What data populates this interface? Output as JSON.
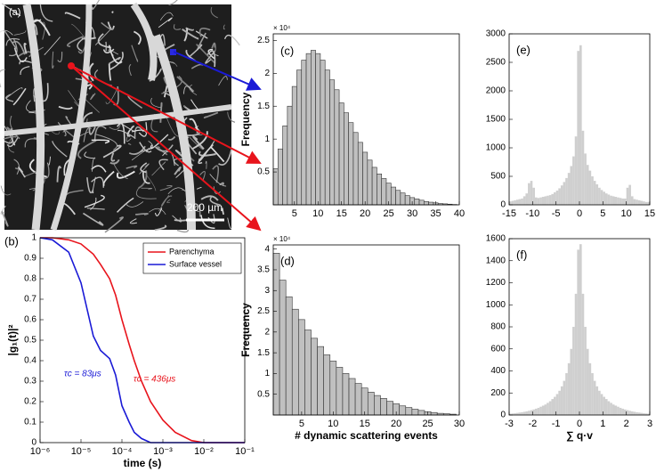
{
  "image": {
    "label": "(a)",
    "scale_bar": "200 µm"
  },
  "chart_data": [
    {
      "type": "line",
      "label": "(b)",
      "x_scale": "log",
      "xlabel": "time (s)",
      "ylabel": "|g₁(t)|²",
      "xlim": [
        1e-06,
        0.1
      ],
      "ylim": [
        0,
        1
      ],
      "xticks": [
        {
          "value": 1e-06,
          "label": "10⁻⁶"
        },
        {
          "value": 1e-05,
          "label": "10⁻⁵"
        },
        {
          "value": 0.0001,
          "label": "10⁻⁴"
        },
        {
          "value": 0.001,
          "label": "10⁻³"
        },
        {
          "value": 0.01,
          "label": "10⁻²"
        },
        {
          "value": 0.1,
          "label": "10⁻¹"
        }
      ],
      "yticks": [
        0,
        0.1,
        0.2,
        0.3,
        0.4,
        0.5,
        0.6,
        0.7,
        0.8,
        0.9,
        1
      ],
      "x": [
        1e-06,
        2e-06,
        5e-06,
        1e-05,
        2e-05,
        3e-05,
        5e-05,
        7e-05,
        0.0001,
        0.00015,
        0.0002,
        0.0003,
        0.0005,
        0.001,
        0.002,
        0.005,
        0.01,
        0.1
      ],
      "series": [
        {
          "name": "Parenchyma",
          "color": "#e8141c",
          "values": [
            1,
            1,
            0.99,
            0.97,
            0.92,
            0.87,
            0.8,
            0.72,
            0.6,
            0.48,
            0.4,
            0.3,
            0.2,
            0.11,
            0.05,
            0.01,
            0,
            0
          ]
        },
        {
          "name": "Surface vessel",
          "color": "#1a1ad6",
          "values": [
            1,
            0.99,
            0.93,
            0.78,
            0.52,
            0.45,
            0.41,
            0.33,
            0.18,
            0.1,
            0.05,
            0.02,
            0,
            0,
            0,
            0,
            0,
            0
          ]
        }
      ],
      "legend": "upper right",
      "annotations": [
        {
          "text": "τc = 83μs",
          "color": "#1a1ad6"
        },
        {
          "text": "τc = 436μs",
          "color": "#e8141c"
        }
      ]
    },
    {
      "type": "histogram",
      "label": "(c)",
      "ylabel": "Frequency",
      "y_multiplier": "× 10⁴",
      "xlim": [
        0.5,
        40
      ],
      "ylim": [
        0,
        2.6
      ],
      "xticks": [
        5,
        10,
        15,
        20,
        25,
        30,
        35,
        40
      ],
      "yticks": [
        0.5,
        1,
        1.5,
        2,
        2.5
      ],
      "color": "#c0c0c0",
      "edgecolor": "#333333",
      "bins": [
        0.5,
        1.5,
        2.5,
        3.5,
        4.5,
        5.5,
        6.5,
        7.5,
        8.5,
        9.5,
        10.5,
        11.5,
        12.5,
        13.5,
        14.5,
        15.5,
        16.5,
        17.5,
        18.5,
        19.5,
        20.5,
        21.5,
        22.5,
        23.5,
        24.5,
        25.5,
        26.5,
        27.5,
        28.5,
        29.5,
        30.5,
        31.5,
        32.5,
        33.5,
        34.5,
        35.5,
        36.5,
        37.5,
        38.5,
        39.5
      ],
      "values": [
        0.55,
        0.85,
        1.2,
        1.5,
        1.8,
        2.05,
        2.2,
        2.3,
        2.35,
        2.3,
        2.2,
        2.05,
        1.9,
        1.75,
        1.55,
        1.4,
        1.25,
        1.1,
        0.95,
        0.8,
        0.68,
        0.57,
        0.47,
        0.4,
        0.33,
        0.27,
        0.22,
        0.18,
        0.14,
        0.11,
        0.09,
        0.07,
        0.05,
        0.04,
        0.03,
        0.02,
        0.015,
        0.01,
        0.005
      ]
    },
    {
      "type": "histogram",
      "label": "(d)",
      "ylabel": "Frequency",
      "y_multiplier": "× 10⁴",
      "xlabel": "# dynamic scattering events",
      "xlim": [
        0.5,
        30
      ],
      "ylim": [
        0,
        4.1
      ],
      "xticks": [
        5,
        10,
        15,
        20,
        25,
        30
      ],
      "yticks": [
        0.5,
        1,
        1.5,
        2,
        2.5,
        3,
        3.5,
        4
      ],
      "color": "#c0c0c0",
      "edgecolor": "#333333",
      "bins": [
        0.5,
        1.5,
        2.5,
        3.5,
        4.5,
        5.5,
        6.5,
        7.5,
        8.5,
        9.5,
        10.5,
        11.5,
        12.5,
        13.5,
        14.5,
        15.5,
        16.5,
        17.5,
        18.5,
        19.5,
        20.5,
        21.5,
        22.5,
        23.5,
        24.5,
        25.5,
        26.5,
        27.5,
        28.5,
        29.5
      ],
      "values": [
        3.9,
        3.25,
        2.85,
        2.55,
        2.3,
        2.05,
        1.85,
        1.65,
        1.45,
        1.3,
        1.15,
        1.0,
        0.88,
        0.76,
        0.65,
        0.55,
        0.47,
        0.4,
        0.33,
        0.27,
        0.22,
        0.18,
        0.14,
        0.11,
        0.08,
        0.06,
        0.04,
        0.03,
        0.02
      ]
    },
    {
      "type": "histogram",
      "label": "(e)",
      "xlim": [
        -15,
        15
      ],
      "ylim": [
        0,
        3000
      ],
      "xticks": [
        -15,
        -10,
        -5,
        0,
        5,
        10,
        15
      ],
      "yticks": [
        0,
        500,
        1000,
        1500,
        2000,
        2500,
        3000
      ],
      "color": "#cfcfcf",
      "bins": [
        -15,
        -14.5,
        -14,
        -13.5,
        -13,
        -12.5,
        -12,
        -11.5,
        -11,
        -10.5,
        -10,
        -9.5,
        -9,
        -8.5,
        -8,
        -7.5,
        -7,
        -6.5,
        -6,
        -5.5,
        -5,
        -4.5,
        -4,
        -3.5,
        -3,
        -2.5,
        -2,
        -1.5,
        -1,
        -0.5,
        0,
        0.5,
        1,
        1.5,
        2,
        2.5,
        3,
        3.5,
        4,
        4.5,
        5,
        5.5,
        6,
        6.5,
        7,
        7.5,
        8,
        8.5,
        9,
        9.5,
        10,
        10.5,
        11,
        11.5,
        12,
        12.5,
        13,
        13.5,
        14,
        14.5,
        15
      ],
      "values": [
        60,
        70,
        80,
        90,
        100,
        110,
        150,
        200,
        380,
        420,
        300,
        130,
        120,
        130,
        140,
        150,
        160,
        170,
        190,
        220,
        250,
        290,
        340,
        400,
        470,
        560,
        680,
        850,
        1200,
        2700,
        2800,
        1300,
        900,
        700,
        600,
        500,
        420,
        360,
        300,
        260,
        230,
        200,
        180,
        160,
        150,
        140,
        130,
        120,
        110,
        110,
        300,
        350,
        150,
        100,
        90,
        80,
        70,
        60,
        50,
        50
      ]
    },
    {
      "type": "histogram",
      "label": "(f)",
      "xlabel": "∑ q·v",
      "xlim": [
        -3,
        3
      ],
      "ylim": [
        0,
        1600
      ],
      "xticks": [
        -3,
        -2,
        -1,
        0,
        1,
        2,
        3
      ],
      "yticks": [
        0,
        200,
        400,
        600,
        800,
        1000,
        1200,
        1400,
        1600
      ],
      "color": "#cfcfcf",
      "bins": [
        -3,
        -2.9,
        -2.8,
        -2.7,
        -2.6,
        -2.5,
        -2.4,
        -2.3,
        -2.2,
        -2.1,
        -2,
        -1.9,
        -1.8,
        -1.7,
        -1.6,
        -1.5,
        -1.4,
        -1.3,
        -1.2,
        -1.1,
        -1,
        -0.9,
        -0.8,
        -0.7,
        -0.6,
        -0.5,
        -0.4,
        -0.3,
        -0.2,
        -0.1,
        0,
        0.1,
        0.2,
        0.3,
        0.4,
        0.5,
        0.6,
        0.7,
        0.8,
        0.9,
        1,
        1.1,
        1.2,
        1.3,
        1.4,
        1.5,
        1.6,
        1.7,
        1.8,
        1.9,
        2,
        2.1,
        2.2,
        2.3,
        2.4,
        2.5,
        2.6,
        2.7,
        2.8,
        2.9,
        3
      ],
      "values": [
        12,
        14,
        16,
        19,
        22,
        25,
        29,
        33,
        38,
        44,
        50,
        57,
        65,
        75,
        85,
        95,
        110,
        125,
        145,
        165,
        190,
        220,
        260,
        310,
        380,
        470,
        600,
        800,
        1100,
        1500,
        1550,
        1100,
        800,
        600,
        470,
        380,
        310,
        260,
        220,
        190,
        165,
        145,
        125,
        110,
        95,
        85,
        75,
        65,
        57,
        50,
        44,
        38,
        33,
        29,
        25,
        22,
        19,
        16,
        14,
        12
      ]
    }
  ]
}
